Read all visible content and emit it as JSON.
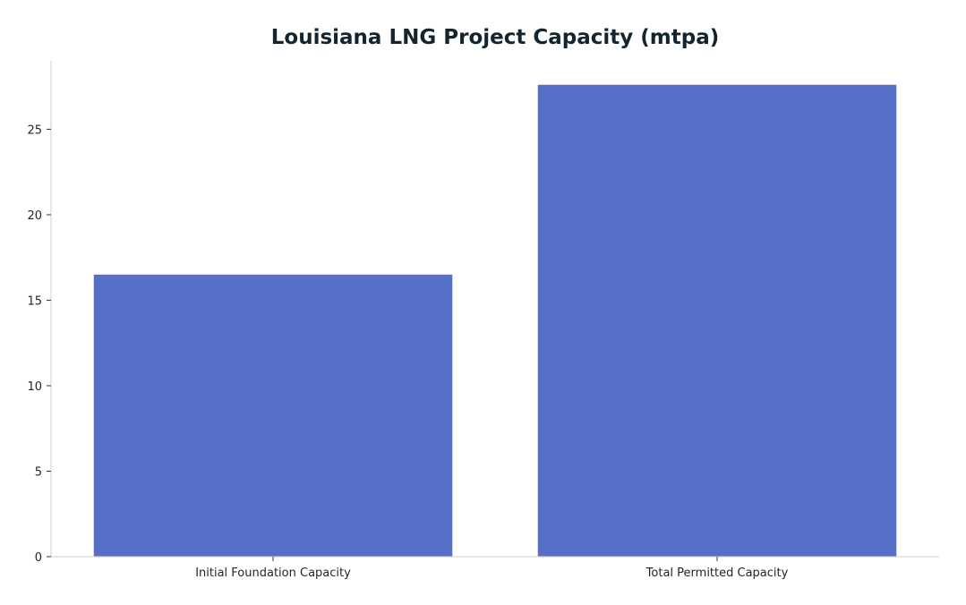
{
  "chart_data": {
    "type": "bar",
    "title": "Louisiana LNG Project Capacity (mtpa)",
    "xlabel": "",
    "ylabel": "",
    "categories": [
      "Initial Foundation Capacity",
      "Total Permitted Capacity"
    ],
    "values": [
      16.5,
      27.6
    ],
    "ylim": [
      0,
      29
    ],
    "yticks": [
      0,
      5,
      10,
      15,
      20,
      25
    ],
    "grid": false,
    "bar_color": "#5570c6"
  }
}
